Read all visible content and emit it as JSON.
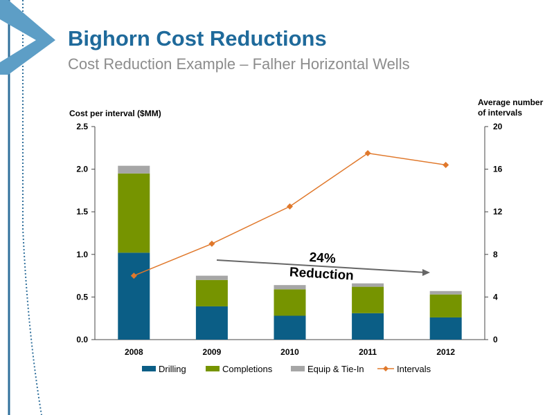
{
  "slide": {
    "title": "Bighorn Cost Reductions",
    "subtitle": "Cost Reduction Example – Falher Horizontal Wells",
    "accent_color": "#1f6a9b"
  },
  "chart_data": {
    "type": "bar",
    "stacked": true,
    "categories": [
      "2008",
      "2009",
      "2010",
      "2011",
      "2012"
    ],
    "ylabel_left": "Cost per interval ($MM)",
    "ylabel_right": "Average number of intervals",
    "ylim_left": [
      0,
      2.5
    ],
    "ylim_right": [
      0,
      20
    ],
    "yticks_left": [
      "0.0",
      "0.5",
      "1.0",
      "1.5",
      "2.0",
      "2.5"
    ],
    "yticks_right": [
      "0",
      "4",
      "8",
      "12",
      "16",
      "20"
    ],
    "series": [
      {
        "name": "Drilling",
        "type": "bar",
        "axis": "left",
        "color": "#0b5e86",
        "values": [
          1.02,
          0.39,
          0.28,
          0.31,
          0.26
        ]
      },
      {
        "name": "Completions",
        "type": "bar",
        "axis": "left",
        "color": "#769400",
        "values": [
          0.93,
          0.31,
          0.31,
          0.31,
          0.27
        ]
      },
      {
        "name": "Equip & Tie-In",
        "type": "bar",
        "axis": "left",
        "color": "#a6a6a6",
        "values": [
          0.09,
          0.05,
          0.05,
          0.04,
          0.04
        ]
      },
      {
        "name": "Intervals",
        "type": "line",
        "axis": "right",
        "color": "#e0782b",
        "marker": "diamond",
        "values": [
          6,
          9,
          12.5,
          17.5,
          16.4
        ]
      }
    ],
    "annotation": {
      "line1": "24%",
      "line2": "Reduction"
    },
    "legend_position": "bottom",
    "grid": false
  }
}
